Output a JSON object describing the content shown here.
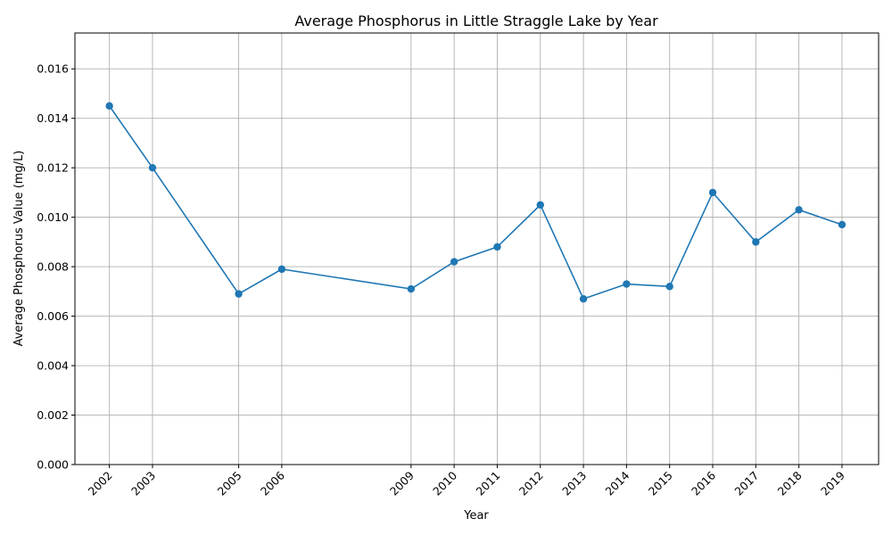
{
  "chart_data": {
    "type": "line",
    "title": "Average Phosphorus in Little Straggle Lake by Year",
    "xlabel": "Year",
    "ylabel": "Average Phosphorus Value (mg/L)",
    "x": [
      2002,
      2003,
      2005,
      2006,
      2009,
      2010,
      2011,
      2012,
      2013,
      2014,
      2015,
      2016,
      2017,
      2018,
      2019
    ],
    "x_tick_labels": [
      "2002",
      "2003",
      "2005",
      "2006",
      "2009",
      "2010",
      "2011",
      "2012",
      "2013",
      "2014",
      "2015",
      "2016",
      "2017",
      "2018",
      "2019"
    ],
    "series": [
      {
        "values": [
          0.0145,
          0.012,
          0.0069,
          0.0079,
          0.0071,
          0.0082,
          0.0088,
          0.0105,
          0.0067,
          0.0073,
          0.0072,
          0.011,
          0.009,
          0.0103,
          0.0097
        ],
        "color": "#1f77b4",
        "marker": "circle"
      }
    ],
    "y_ticks": [
      0.0,
      0.002,
      0.004,
      0.006,
      0.008,
      0.01,
      0.012,
      0.014,
      0.016
    ],
    "y_tick_labels": [
      "0.000",
      "0.002",
      "0.004",
      "0.006",
      "0.008",
      "0.010",
      "0.012",
      "0.014",
      "0.016"
    ],
    "xlim": [
      2001.2,
      2019.85
    ],
    "ylim": [
      0,
      0.01745
    ],
    "grid": true,
    "legend": "none"
  }
}
